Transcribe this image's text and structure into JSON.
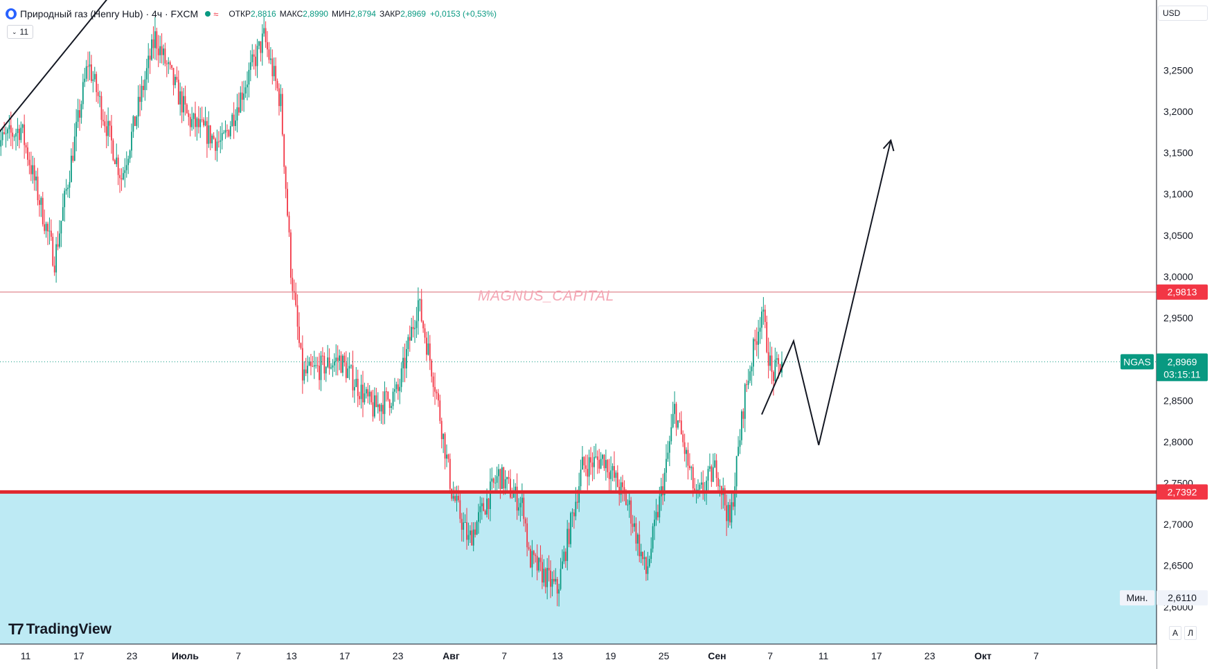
{
  "header": {
    "title": "Природный газ (Henry Hub) · 4ч · FXCM",
    "wave_symbol": "≈",
    "open_label": "ОТКР",
    "open_value": "2,8816",
    "high_label": "МАКС",
    "high_value": "2,8990",
    "low_label": "МИН",
    "low_value": "2,8794",
    "close_label": "ЗАКР",
    "close_value": "2,8969",
    "change": "+0,0153 (+0,53%)"
  },
  "indicator_badge": "11",
  "currency": "USD",
  "watermark": "MAGNUS_CAPITAL",
  "tv_logo": "TradingView",
  "bottom_buttons": [
    "A",
    "Л"
  ],
  "colors": {
    "up": "#089981",
    "down": "#f23645",
    "zone": "#bdeaf4",
    "level_line": "#e0282f",
    "resistance_line": "#d96a75",
    "ticker_tag": "#089981"
  },
  "chart_data": {
    "type": "candlestick",
    "symbol": "NGAS",
    "timeframe": "4ч",
    "y_axis": {
      "ticks": [
        "3,2500",
        "3,2000",
        "3,1500",
        "3,1000",
        "3,0500",
        "3,0000",
        "2,9500",
        "2,8500",
        "2,8000",
        "2,7500",
        "2,7000",
        "2,6500",
        "2,6000"
      ],
      "tick_values": [
        3.25,
        3.2,
        3.15,
        3.1,
        3.05,
        3.0,
        2.95,
        2.85,
        2.8,
        2.75,
        2.7,
        2.65,
        2.6
      ],
      "range": [
        2.555,
        3.335
      ]
    },
    "x_axis": {
      "ticks": [
        "11",
        "17",
        "23",
        "Июль",
        "7",
        "13",
        "17",
        "23",
        "Авг",
        "7",
        "13",
        "19",
        "25",
        "Сен",
        "7",
        "11",
        "17",
        "23",
        "Окт",
        "7"
      ]
    },
    "levels": [
      {
        "label": "2,9813",
        "value": 2.9813,
        "style": "thin"
      },
      {
        "label": "2,7392",
        "value": 2.7392,
        "style": "thick"
      }
    ],
    "support_zone": {
      "from": 2.7392,
      "to": 2.555
    },
    "last_price": {
      "value": 2.8969,
      "label": "2,8969",
      "countdown": "03:15:11"
    },
    "min_marker": {
      "label": "Мин.",
      "value": "2,6110",
      "y": 2.611
    },
    "trendline": {
      "from": {
        "bar": 0,
        "price": 3.17
      },
      "to": {
        "bar": 72,
        "price": 3.35
      }
    },
    "projection_path": [
      {
        "bar": 457,
        "price": 2.833
      },
      {
        "bar": 476,
        "price": 2.922
      },
      {
        "bar": 491,
        "price": 2.796
      },
      {
        "bar": 534,
        "price": 3.165
      }
    ],
    "candle_count": 470,
    "anchor_path": [
      {
        "bar": 0,
        "price": 3.16
      },
      {
        "bar": 15,
        "price": 3.18
      },
      {
        "bar": 35,
        "price": 3.02
      },
      {
        "bar": 55,
        "price": 3.26
      },
      {
        "bar": 75,
        "price": 3.12
      },
      {
        "bar": 95,
        "price": 3.29
      },
      {
        "bar": 115,
        "price": 3.19
      },
      {
        "bar": 135,
        "price": 3.16
      },
      {
        "bar": 150,
        "price": 3.24
      },
      {
        "bar": 160,
        "price": 3.29
      },
      {
        "bar": 170,
        "price": 3.21
      },
      {
        "bar": 176,
        "price": 3.01
      },
      {
        "bar": 183,
        "price": 2.88
      },
      {
        "bar": 205,
        "price": 2.9
      },
      {
        "bar": 225,
        "price": 2.84
      },
      {
        "bar": 240,
        "price": 2.86
      },
      {
        "bar": 252,
        "price": 2.97
      },
      {
        "bar": 262,
        "price": 2.87
      },
      {
        "bar": 272,
        "price": 2.74
      },
      {
        "bar": 282,
        "price": 2.68
      },
      {
        "bar": 300,
        "price": 2.76
      },
      {
        "bar": 315,
        "price": 2.72
      },
      {
        "bar": 318,
        "price": 2.66
      },
      {
        "bar": 335,
        "price": 2.62
      },
      {
        "bar": 350,
        "price": 2.77
      },
      {
        "bar": 363,
        "price": 2.78
      },
      {
        "bar": 378,
        "price": 2.72
      },
      {
        "bar": 388,
        "price": 2.64
      },
      {
        "bar": 400,
        "price": 2.77
      },
      {
        "bar": 405,
        "price": 2.84
      },
      {
        "bar": 418,
        "price": 2.73
      },
      {
        "bar": 430,
        "price": 2.77
      },
      {
        "bar": 438,
        "price": 2.7
      },
      {
        "bar": 447,
        "price": 2.86
      },
      {
        "bar": 457,
        "price": 2.96
      },
      {
        "bar": 463,
        "price": 2.88
      },
      {
        "bar": 470,
        "price": 2.897
      }
    ]
  }
}
